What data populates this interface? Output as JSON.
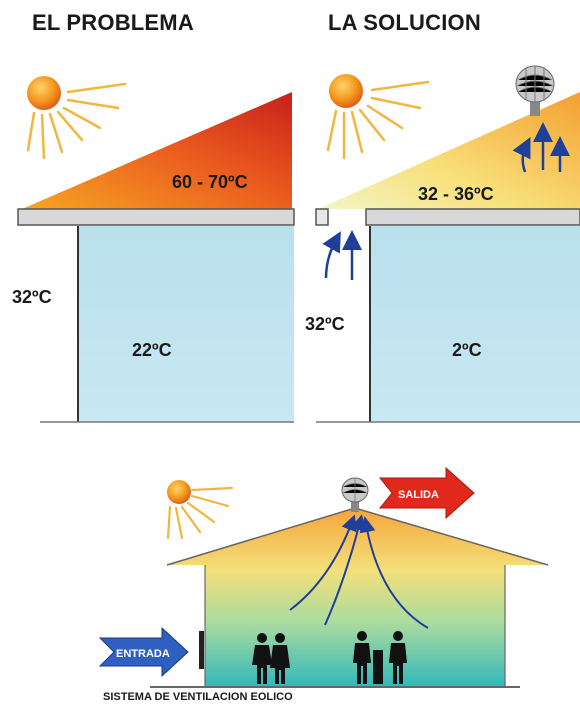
{
  "left_panel": {
    "title": "EL PROBLEMA",
    "roof_temp": "60 - 70ºC",
    "outside_temp": "32ºC",
    "inside_temp": "22ºC"
  },
  "right_panel": {
    "title": "LA SOLUCION",
    "roof_temp": "32 - 36ºC",
    "outside_temp": "32ºC",
    "inside_temp": "2ºC"
  },
  "bottom_diagram": {
    "inlet_label": "ENTRADA",
    "outlet_label": "SALIDA",
    "caption": "SISTEMA DE VENTILACION EOLICO"
  },
  "colors": {
    "hot_roof": "#d9331a",
    "warm_roof": "#f6a623",
    "cool_room": "#bfe3ef",
    "arrow_blue": "#1f3f9a",
    "arrow_red": "#e0281c",
    "sun": "#f08a1c"
  },
  "icons": [
    "sun-icon",
    "wind-turbine-icon",
    "airflow-arrow-icon",
    "person-silhouette-icon"
  ]
}
